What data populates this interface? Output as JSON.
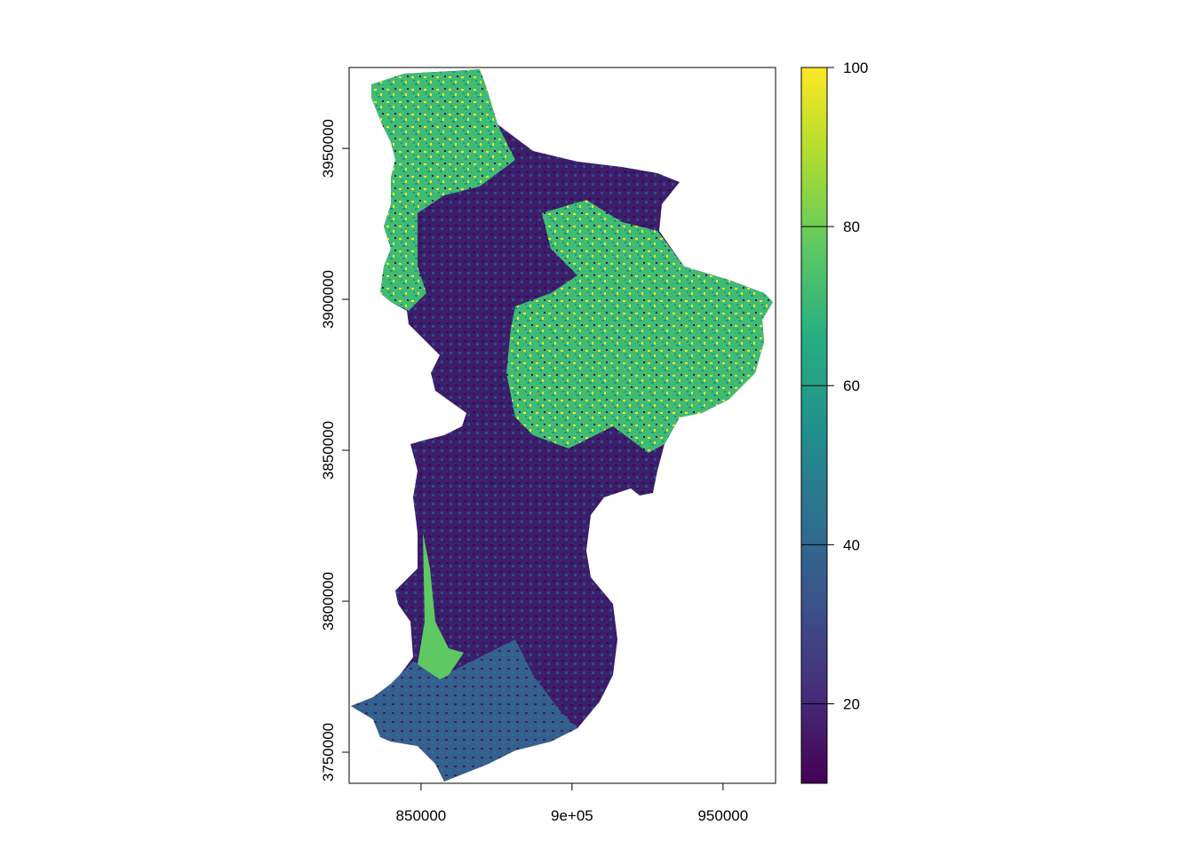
{
  "chart_data": {
    "type": "raster",
    "xlim": [
      826200,
      967400
    ],
    "ylim": [
      3739700,
      3976800
    ],
    "xticks": [
      850000,
      {
        "value": 900000,
        "label": "9e+05"
      },
      950000
    ],
    "yticks": [
      3750000,
      3800000,
      3850000,
      3900000,
      3950000
    ],
    "colorbar": {
      "colormap": "viridis",
      "lim": [
        10,
        100
      ],
      "ticks": [
        20,
        40,
        60,
        80,
        100
      ]
    }
  }
}
